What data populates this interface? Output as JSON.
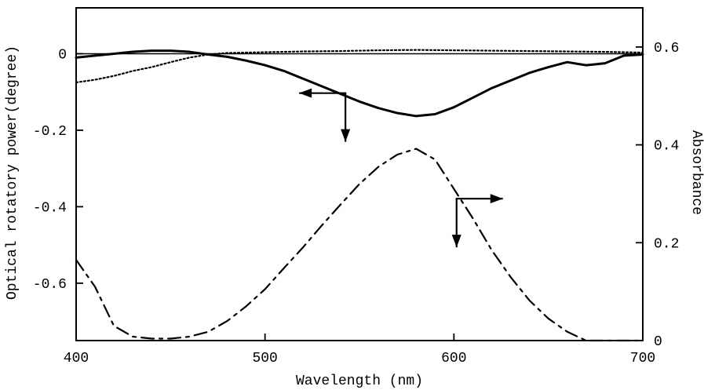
{
  "chart_data": {
    "type": "line",
    "title": "",
    "xlabel": "Wavelength (nm)",
    "ylabel_left": "Optical rotatory power(degree)",
    "ylabel_right": "Absorbance",
    "xlim": [
      400,
      700
    ],
    "ylim_left": [
      -0.75,
      0.12
    ],
    "ylim_right": [
      0,
      0.68
    ],
    "x_ticks": [
      400,
      500,
      600,
      700
    ],
    "y_ticks_left": [
      {
        "value": 0,
        "label": "0"
      },
      {
        "value": -0.2,
        "label": "-0.2"
      },
      {
        "value": -0.4,
        "label": "-0.4"
      },
      {
        "value": -0.6,
        "label": "-0.6"
      }
    ],
    "y_ticks_right": [
      {
        "value": 0,
        "label": "0"
      },
      {
        "value": 0.2,
        "label": "0.2"
      },
      {
        "value": 0.4,
        "label": "0.4"
      },
      {
        "value": 0.6,
        "label": "0.6"
      }
    ],
    "grid": false,
    "legend": "none",
    "reference_lines": [
      {
        "axis": "left",
        "y": 0
      }
    ],
    "series": [
      {
        "axis": "left",
        "style": "solid",
        "values_xy": [
          [
            400,
            -0.01
          ],
          [
            410,
            -0.005
          ],
          [
            420,
            0.0
          ],
          [
            430,
            0.005
          ],
          [
            440,
            0.008
          ],
          [
            450,
            0.008
          ],
          [
            460,
            0.005
          ],
          [
            470,
            -0.002
          ],
          [
            480,
            -0.008
          ],
          [
            490,
            -0.018
          ],
          [
            500,
            -0.03
          ],
          [
            510,
            -0.045
          ],
          [
            520,
            -0.065
          ],
          [
            530,
            -0.085
          ],
          [
            540,
            -0.105
          ],
          [
            550,
            -0.125
          ],
          [
            560,
            -0.142
          ],
          [
            570,
            -0.155
          ],
          [
            580,
            -0.163
          ],
          [
            590,
            -0.158
          ],
          [
            600,
            -0.14
          ],
          [
            610,
            -0.115
          ],
          [
            620,
            -0.09
          ],
          [
            630,
            -0.07
          ],
          [
            640,
            -0.05
          ],
          [
            650,
            -0.035
          ],
          [
            660,
            -0.022
          ],
          [
            670,
            -0.03
          ],
          [
            680,
            -0.025
          ],
          [
            690,
            -0.005
          ],
          [
            700,
            -0.002
          ]
        ]
      },
      {
        "axis": "left",
        "style": "dotted",
        "values_xy": [
          [
            400,
            -0.075
          ],
          [
            410,
            -0.068
          ],
          [
            420,
            -0.058
          ],
          [
            430,
            -0.045
          ],
          [
            440,
            -0.035
          ],
          [
            450,
            -0.022
          ],
          [
            460,
            -0.01
          ],
          [
            470,
            -0.002
          ],
          [
            480,
            0.002
          ],
          [
            500,
            0.004
          ],
          [
            520,
            0.006
          ],
          [
            540,
            0.007
          ],
          [
            560,
            0.009
          ],
          [
            580,
            0.01
          ],
          [
            600,
            0.009
          ],
          [
            620,
            0.008
          ],
          [
            640,
            0.007
          ],
          [
            660,
            0.006
          ],
          [
            680,
            0.005
          ],
          [
            700,
            0.003
          ]
        ]
      },
      {
        "axis": "right",
        "style": "dash-dot",
        "values_xy": [
          [
            400,
            0.165
          ],
          [
            410,
            0.11
          ],
          [
            420,
            0.03
          ],
          [
            430,
            0.008
          ],
          [
            440,
            0.004
          ],
          [
            450,
            0.004
          ],
          [
            460,
            0.008
          ],
          [
            470,
            0.018
          ],
          [
            480,
            0.04
          ],
          [
            490,
            0.07
          ],
          [
            500,
            0.105
          ],
          [
            510,
            0.148
          ],
          [
            520,
            0.19
          ],
          [
            530,
            0.235
          ],
          [
            540,
            0.278
          ],
          [
            550,
            0.32
          ],
          [
            560,
            0.355
          ],
          [
            570,
            0.38
          ],
          [
            580,
            0.392
          ],
          [
            590,
            0.37
          ],
          [
            600,
            0.31
          ],
          [
            610,
            0.25
          ],
          [
            620,
            0.185
          ],
          [
            630,
            0.13
          ],
          [
            640,
            0.082
          ],
          [
            650,
            0.045
          ],
          [
            660,
            0.018
          ],
          [
            670,
            0.0
          ],
          [
            680,
            0.0
          ],
          [
            690,
            0.0
          ],
          [
            700,
            0.0
          ]
        ]
      }
    ],
    "annotations": [
      {
        "type": "arrow-pair",
        "target": "left",
        "origin_xy": [
          543,
          -0.103
        ]
      },
      {
        "type": "arrow-pair",
        "target": "right",
        "origin_xy": [
          601,
          0.29
        ]
      }
    ]
  }
}
